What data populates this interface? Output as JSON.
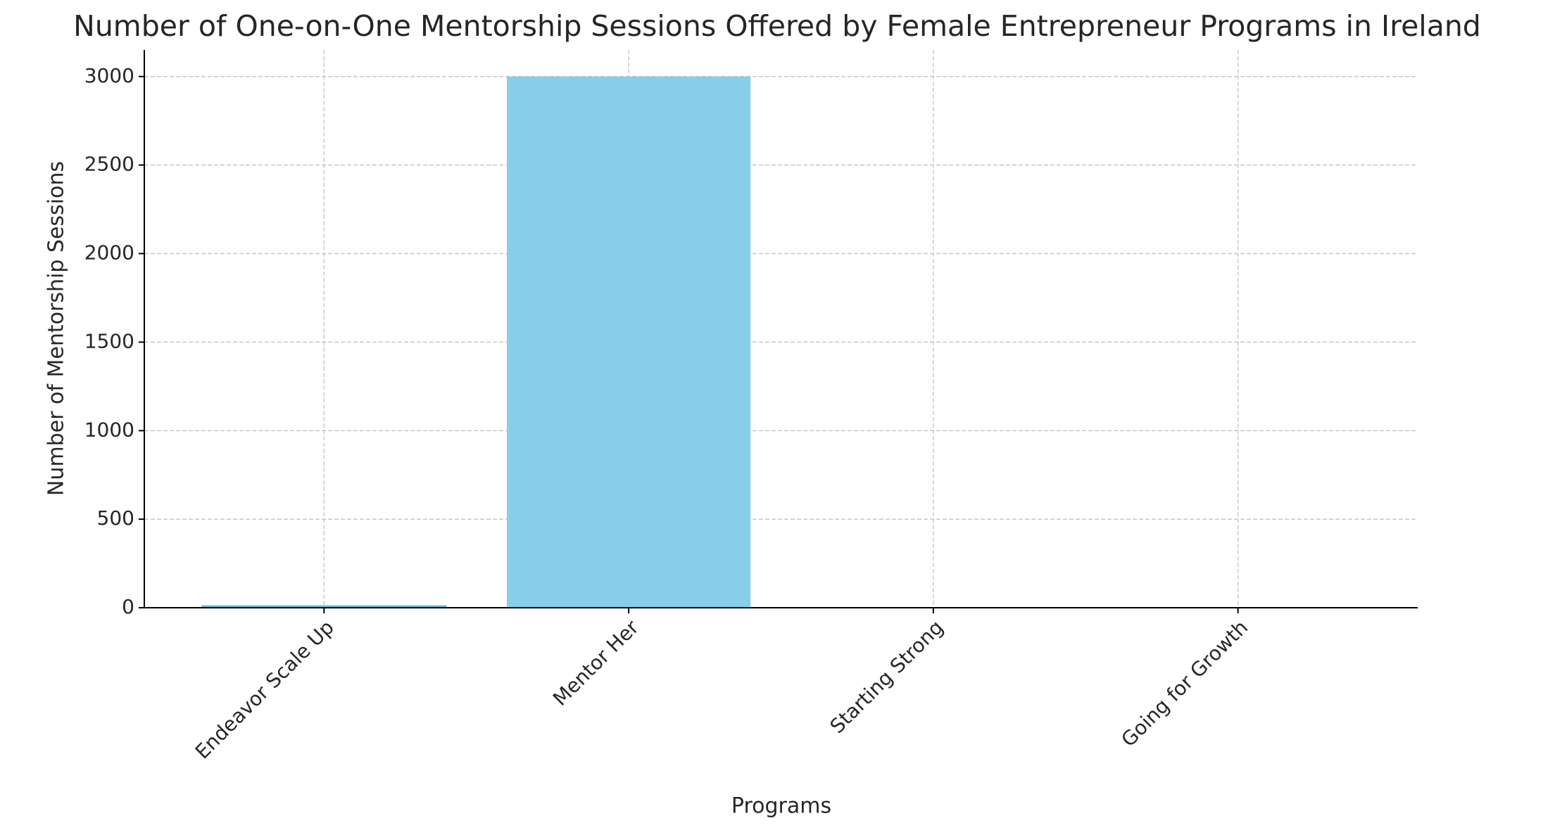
{
  "chart_data": {
    "type": "bar",
    "title": "Number of One-on-One Mentorship Sessions Offered by Female Entrepreneur Programs in Ireland",
    "x_label": "Programs",
    "y_label": "Number of Mentorship Sessions",
    "categories": [
      "Endeavor Scale Up",
      "Mentor Her",
      "Starting Strong",
      "Going for Growth"
    ],
    "values": [
      10,
      3000,
      0,
      0
    ],
    "color": "#87ceeb",
    "ylim": [
      0,
      3150
    ],
    "yticks": [
      0,
      500,
      1000,
      1500,
      2000,
      2500,
      3000
    ],
    "grid": true
  }
}
